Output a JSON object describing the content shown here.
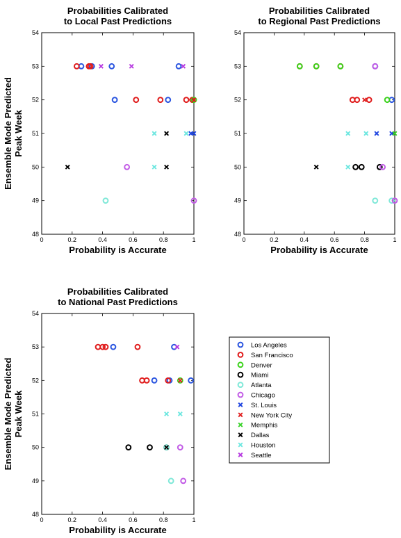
{
  "colors": {
    "Los Angeles": "#2a55e0",
    "San Francisco": "#e01c1c",
    "Denver": "#3bd31a",
    "Miami": "#000000",
    "Atlanta": "#7fe8d8",
    "Chicago": "#c25ce6",
    "St. Louis": "#2046e0",
    "New York City": "#e01c1c",
    "Memphis": "#39d22a",
    "Dallas": "#000000",
    "Houston": "#6ee7e0",
    "Seattle": "#b73be0"
  },
  "legend": {
    "entries": [
      {
        "label": "Los Angeles",
        "marker": "o"
      },
      {
        "label": "San Francisco",
        "marker": "o"
      },
      {
        "label": "Denver",
        "marker": "o"
      },
      {
        "label": "Miami",
        "marker": "o"
      },
      {
        "label": "Atlanta",
        "marker": "o"
      },
      {
        "label": "Chicago",
        "marker": "o"
      },
      {
        "label": "St. Louis",
        "marker": "x"
      },
      {
        "label": "New York City",
        "marker": "x"
      },
      {
        "label": "Memphis",
        "marker": "x"
      },
      {
        "label": "Dallas",
        "marker": "x"
      },
      {
        "label": "Houston",
        "marker": "x"
      },
      {
        "label": "Seattle",
        "marker": "x"
      }
    ]
  },
  "chart_data": [
    {
      "type": "scatter",
      "title": [
        "Probabilities Calibrated",
        "to Local Past Predictions"
      ],
      "xlabel": "Probability is Accurate",
      "ylabel": [
        "Ensemble Mode Predicted",
        "Peak Week"
      ],
      "xlim": [
        0,
        1
      ],
      "ylim": [
        48,
        54
      ],
      "xticks": [
        0,
        0.2,
        0.4,
        0.6,
        0.8,
        1
      ],
      "xtick_labels": [
        "0",
        "0.2",
        "0.4",
        "0.6",
        "0.8",
        "1"
      ],
      "yticks": [
        48,
        49,
        50,
        51,
        52,
        53,
        54
      ],
      "grid": false,
      "series": [
        {
          "name": "Los Angeles",
          "marker": "o",
          "points": [
            [
              0.26,
              53
            ],
            [
              0.33,
              53
            ],
            [
              0.46,
              53
            ],
            [
              0.9,
              53
            ],
            [
              0.48,
              52
            ],
            [
              0.83,
              52
            ]
          ]
        },
        {
          "name": "San Francisco",
          "marker": "o",
          "points": [
            [
              0.23,
              53
            ],
            [
              0.31,
              53
            ],
            [
              0.32,
              53
            ],
            [
              0.62,
              52
            ],
            [
              0.78,
              52
            ],
            [
              0.95,
              52
            ],
            [
              0.99,
              52
            ]
          ]
        },
        {
          "name": "Denver",
          "marker": "o",
          "points": [
            [
              1.0,
              52
            ]
          ]
        },
        {
          "name": "Atlanta",
          "marker": "o",
          "points": [
            [
              0.42,
              49
            ]
          ]
        },
        {
          "name": "Chicago",
          "marker": "o",
          "points": [
            [
              0.56,
              50
            ],
            [
              1.0,
              49
            ]
          ]
        },
        {
          "name": "St. Louis",
          "marker": "x",
          "points": [
            [
              0.98,
              51
            ],
            [
              1.0,
              51
            ]
          ]
        },
        {
          "name": "New York City",
          "marker": "x",
          "points": [
            [
              1.0,
              52
            ]
          ]
        },
        {
          "name": "Dallas",
          "marker": "x",
          "points": [
            [
              0.17,
              50
            ],
            [
              0.82,
              51
            ],
            [
              0.82,
              50
            ]
          ]
        },
        {
          "name": "Houston",
          "marker": "x",
          "points": [
            [
              0.74,
              51
            ],
            [
              0.74,
              50
            ],
            [
              0.95,
              51
            ]
          ]
        },
        {
          "name": "Seattle",
          "marker": "x",
          "points": [
            [
              0.39,
              53
            ],
            [
              0.59,
              53
            ],
            [
              0.93,
              53
            ]
          ]
        }
      ]
    },
    {
      "type": "scatter",
      "title": [
        "Probabilities Calibrated",
        "to Regional Past Predictions"
      ],
      "xlabel": "Probability is Accurate",
      "ylabel": [],
      "xlim": [
        0,
        1
      ],
      "ylim": [
        48,
        54
      ],
      "xticks": [
        0,
        0.2,
        0.4,
        0.6,
        0.8,
        1
      ],
      "xtick_labels": [
        "0",
        "0.2",
        "0.4",
        "0.6",
        "0.8",
        "1"
      ],
      "yticks": [
        48,
        49,
        50,
        51,
        52,
        53,
        54
      ],
      "grid": false,
      "series": [
        {
          "name": "Los Angeles",
          "marker": "o",
          "points": [
            [
              0.87,
              53
            ],
            [
              0.98,
              52
            ]
          ]
        },
        {
          "name": "San Francisco",
          "marker": "o",
          "points": [
            [
              0.37,
              53
            ],
            [
              0.48,
              53
            ],
            [
              0.64,
              53
            ],
            [
              0.72,
              52
            ],
            [
              0.75,
              52
            ],
            [
              0.83,
              52
            ]
          ]
        },
        {
          "name": "Denver",
          "marker": "o",
          "points": [
            [
              0.37,
              53
            ],
            [
              0.48,
              53
            ],
            [
              0.64,
              53
            ],
            [
              0.95,
              52
            ]
          ]
        },
        {
          "name": "Miami",
          "marker": "o",
          "points": [
            [
              0.74,
              50
            ],
            [
              0.78,
              50
            ],
            [
              0.9,
              50
            ]
          ]
        },
        {
          "name": "Atlanta",
          "marker": "o",
          "points": [
            [
              0.87,
              49
            ],
            [
              0.98,
              49
            ]
          ]
        },
        {
          "name": "Chicago",
          "marker": "o",
          "points": [
            [
              0.87,
              53
            ],
            [
              0.92,
              50
            ],
            [
              1.0,
              49
            ]
          ]
        },
        {
          "name": "St. Louis",
          "marker": "x",
          "points": [
            [
              0.88,
              51
            ],
            [
              0.98,
              51
            ]
          ]
        },
        {
          "name": "New York City",
          "marker": "x",
          "points": [
            [
              0.8,
              52
            ]
          ]
        },
        {
          "name": "Memphis",
          "marker": "x",
          "points": [
            [
              1.0,
              51
            ]
          ]
        },
        {
          "name": "Dallas",
          "marker": "x",
          "points": [
            [
              0.48,
              50
            ]
          ]
        },
        {
          "name": "Houston",
          "marker": "x",
          "points": [
            [
              0.69,
              51
            ],
            [
              0.81,
              51
            ],
            [
              0.69,
              50
            ]
          ]
        }
      ]
    },
    {
      "type": "scatter",
      "title": [
        "Probabilities Calibrated",
        "to National Past Predictions"
      ],
      "xlabel": "Probability is Accurate",
      "ylabel": [
        "Ensemble Mode Predicted",
        "Peak Week"
      ],
      "xlim": [
        0,
        1
      ],
      "ylim": [
        48,
        54
      ],
      "xticks": [
        0,
        0.2,
        0.4,
        0.6,
        0.8,
        1
      ],
      "xtick_labels": [
        "0",
        "0.2",
        "0.4",
        "0.6",
        "0.8",
        "1"
      ],
      "yticks": [
        48,
        49,
        50,
        51,
        52,
        53,
        54
      ],
      "grid": false,
      "series": [
        {
          "name": "Los Angeles",
          "marker": "o",
          "points": [
            [
              0.47,
              53
            ],
            [
              0.87,
              53
            ],
            [
              0.74,
              52
            ],
            [
              0.84,
              52
            ],
            [
              0.98,
              52
            ]
          ]
        },
        {
          "name": "San Francisco",
          "marker": "o",
          "points": [
            [
              0.37,
              53
            ],
            [
              0.4,
              53
            ],
            [
              0.42,
              53
            ],
            [
              0.63,
              53
            ],
            [
              0.66,
              52
            ],
            [
              0.69,
              52
            ],
            [
              0.83,
              52
            ]
          ]
        },
        {
          "name": "Denver",
          "marker": "o",
          "points": [
            [
              0.91,
              52
            ]
          ]
        },
        {
          "name": "Miami",
          "marker": "o",
          "points": [
            [
              0.57,
              50
            ],
            [
              0.71,
              50
            ],
            [
              0.82,
              50
            ]
          ]
        },
        {
          "name": "Atlanta",
          "marker": "o",
          "points": [
            [
              0.85,
              49
            ],
            [
              0.82,
              50
            ]
          ]
        },
        {
          "name": "Chicago",
          "marker": "o",
          "points": [
            [
              0.91,
              50
            ],
            [
              0.93,
              49
            ]
          ]
        },
        {
          "name": "New York City",
          "marker": "x",
          "points": [
            [
              0.91,
              52
            ]
          ]
        },
        {
          "name": "Dallas",
          "marker": "x",
          "points": [
            [
              0.82,
              50
            ]
          ]
        },
        {
          "name": "Houston",
          "marker": "x",
          "points": [
            [
              0.82,
              51
            ],
            [
              0.91,
              51
            ]
          ]
        },
        {
          "name": "Seattle",
          "marker": "x",
          "points": [
            [
              0.89,
              53
            ]
          ]
        }
      ]
    }
  ]
}
